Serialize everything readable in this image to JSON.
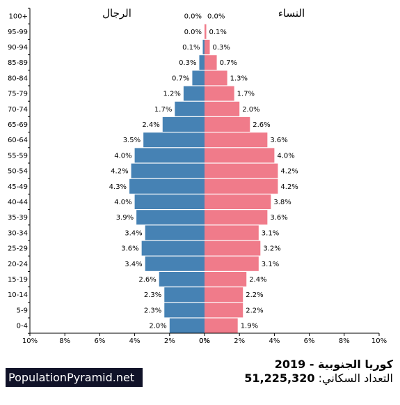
{
  "chart_data": {
    "type": "bar",
    "orientation": "population-pyramid",
    "male_title": "الرجال",
    "female_title": "النساء",
    "age_groups": [
      "100+",
      "95-99",
      "90-94",
      "85-89",
      "80-84",
      "75-79",
      "70-74",
      "65-69",
      "60-64",
      "55-59",
      "50-54",
      "45-49",
      "40-44",
      "35-39",
      "30-34",
      "25-29",
      "20-24",
      "15-19",
      "10-14",
      "5-9",
      "0-4"
    ],
    "series": [
      {
        "name": "الرجال",
        "color": "#4682b4",
        "values": [
          0.0,
          0.0,
          0.1,
          0.3,
          0.7,
          1.2,
          1.7,
          2.4,
          3.5,
          4.0,
          4.2,
          4.3,
          4.0,
          3.9,
          3.4,
          3.6,
          3.4,
          2.6,
          2.3,
          2.3,
          2.0
        ]
      },
      {
        "name": "النساء",
        "color": "#f07b8a",
        "values": [
          0.0,
          0.1,
          0.3,
          0.7,
          1.3,
          1.7,
          2.0,
          2.6,
          3.6,
          4.0,
          4.2,
          4.2,
          3.8,
          3.6,
          3.1,
          3.2,
          3.1,
          2.4,
          2.2,
          2.2,
          1.9
        ]
      }
    ],
    "male_labels": [
      "0.0%",
      "0.0%",
      "0.1%",
      "0.3%",
      "0.7%",
      "1.2%",
      "1.7%",
      "2.4%",
      "3.5%",
      "4.0%",
      "4.2%",
      "4.3%",
      "4.0%",
      "3.9%",
      "3.4%",
      "3.6%",
      "3.4%",
      "2.6%",
      "2.3%",
      "2.3%",
      "2.0%"
    ],
    "female_labels": [
      "0.0%",
      "0.1%",
      "0.3%",
      "0.7%",
      "1.3%",
      "1.7%",
      "2.0%",
      "2.6%",
      "3.6%",
      "4.0%",
      "4.2%",
      "4.2%",
      "3.8%",
      "3.6%",
      "3.1%",
      "3.2%",
      "3.1%",
      "2.4%",
      "2.2%",
      "2.2%",
      "1.9%"
    ],
    "xlim": [
      -10,
      10
    ],
    "x_ticks": [
      "10%",
      "8%",
      "6%",
      "4%",
      "2%",
      "0%",
      "0%",
      "2%",
      "4%",
      "6%",
      "8%",
      "10%"
    ],
    "grid": false
  },
  "footer": {
    "brand": "PopulationPyramid.net",
    "country_year": "كوريا الجنوبية - 2019",
    "population_label": "التعداد السكاني:",
    "population_value": "51,225,320"
  }
}
